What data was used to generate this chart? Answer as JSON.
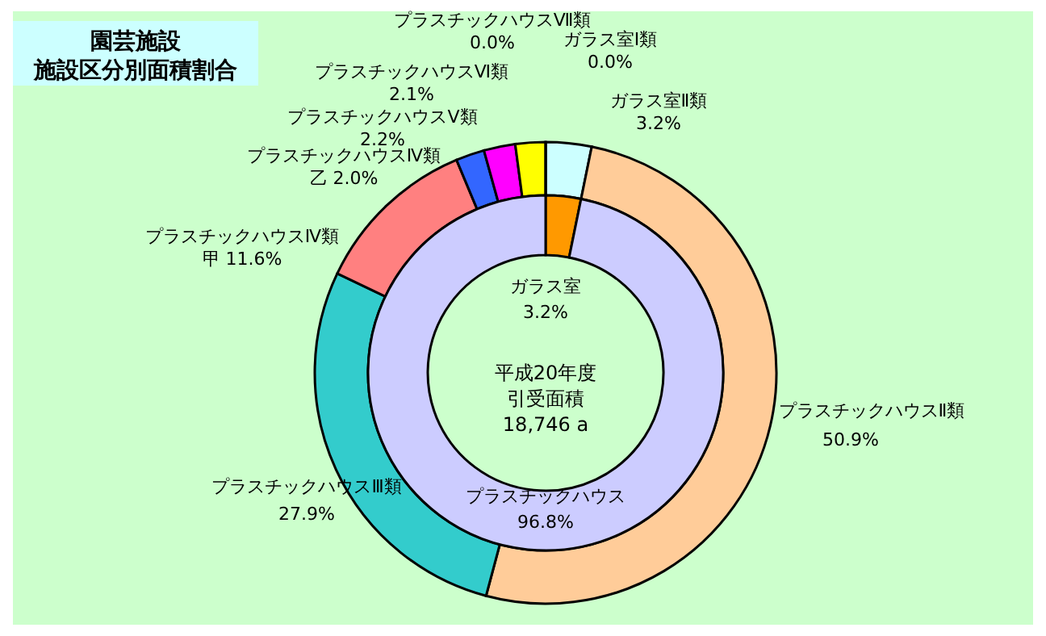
{
  "chart_data": [
    {
      "type": "donut",
      "title": "園芸施設",
      "subtitle": "施設区分別面積割合",
      "categories": [
        "ガラス室Ⅰ類",
        "ガラス室Ⅱ類",
        "プラスチックハウスⅡ類",
        "プラスチックハウスⅢ類",
        "プラスチックハウスⅣ類",
        "プラスチックハウスⅣ類",
        "プラスチックハウスⅤ類",
        "プラスチックハウスⅥ類",
        "プラスチックハウスⅦ類"
      ],
      "values": [
        0.0,
        3.2,
        50.9,
        27.9,
        11.6,
        2.0,
        2.2,
        2.1,
        0.0
      ],
      "value_labels": [
        "0.0%",
        "3.2%",
        "50.9%",
        "27.9%",
        "甲 11.6%",
        "乙 2.0%",
        "2.2%",
        "2.1%",
        "0.0%"
      ],
      "colors": [
        "#99ccff",
        "#ccffff",
        "#ffcc99",
        "#33cccc",
        "#ff8080",
        "#3366ff",
        "#ff00ff",
        "#ffff00",
        "#ffffff"
      ]
    },
    {
      "type": "donut",
      "categories": [
        "ガラス室",
        "プラスチックハウス"
      ],
      "values": [
        3.2,
        96.8
      ],
      "value_labels": [
        "3.2%",
        "96.8%"
      ],
      "colors": [
        "#ff9900",
        "#ccccff"
      ],
      "annotations": [
        "平成20年度",
        "引受面積",
        "18,746 a"
      ]
    }
  ]
}
